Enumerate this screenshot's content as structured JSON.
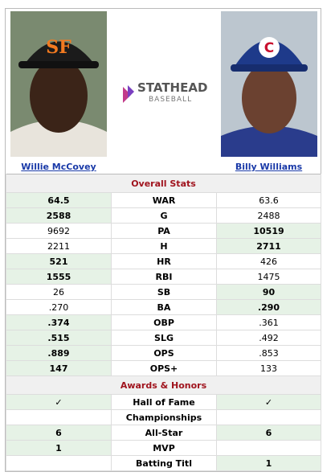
{
  "players": {
    "left": "Willie McCovey",
    "right": "Billy Williams"
  },
  "logo": {
    "brand": "STATHEAD",
    "sub": "BASEBALL"
  },
  "sections": [
    {
      "title": "Overall Stats",
      "rows": [
        {
          "left": "64.5",
          "label": "WAR",
          "right": "63.6",
          "winner": "left"
        },
        {
          "left": "2588",
          "label": "G",
          "right": "2488",
          "winner": "left"
        },
        {
          "left": "9692",
          "label": "PA",
          "right": "10519",
          "winner": "right"
        },
        {
          "left": "2211",
          "label": "H",
          "right": "2711",
          "winner": "right"
        },
        {
          "left": "521",
          "label": "HR",
          "right": "426",
          "winner": "left"
        },
        {
          "left": "1555",
          "label": "RBI",
          "right": "1475",
          "winner": "left"
        },
        {
          "left": "26",
          "label": "SB",
          "right": "90",
          "winner": "right"
        },
        {
          "left": ".270",
          "label": "BA",
          "right": ".290",
          "winner": "right"
        },
        {
          "left": ".374",
          "label": "OBP",
          "right": ".361",
          "winner": "left"
        },
        {
          "left": ".515",
          "label": "SLG",
          "right": ".492",
          "winner": "left"
        },
        {
          "left": ".889",
          "label": "OPS",
          "right": ".853",
          "winner": "left"
        },
        {
          "left": "147",
          "label": "OPS+",
          "right": "133",
          "winner": "left"
        }
      ]
    },
    {
      "title": "Awards & Honors",
      "rows": [
        {
          "left": "✓",
          "label": "Hall of Fame",
          "right": "✓",
          "winner": "both"
        },
        {
          "left": null,
          "label": "Championships",
          "right": null,
          "winner": null
        },
        {
          "left": "6",
          "label": "All-Star",
          "right": "6",
          "winner": "both"
        },
        {
          "left": "1",
          "label": "MVP",
          "right": null,
          "winner": "left"
        },
        {
          "left": null,
          "label": "Batting Titl",
          "right": "1",
          "winner": "right"
        }
      ]
    }
  ]
}
